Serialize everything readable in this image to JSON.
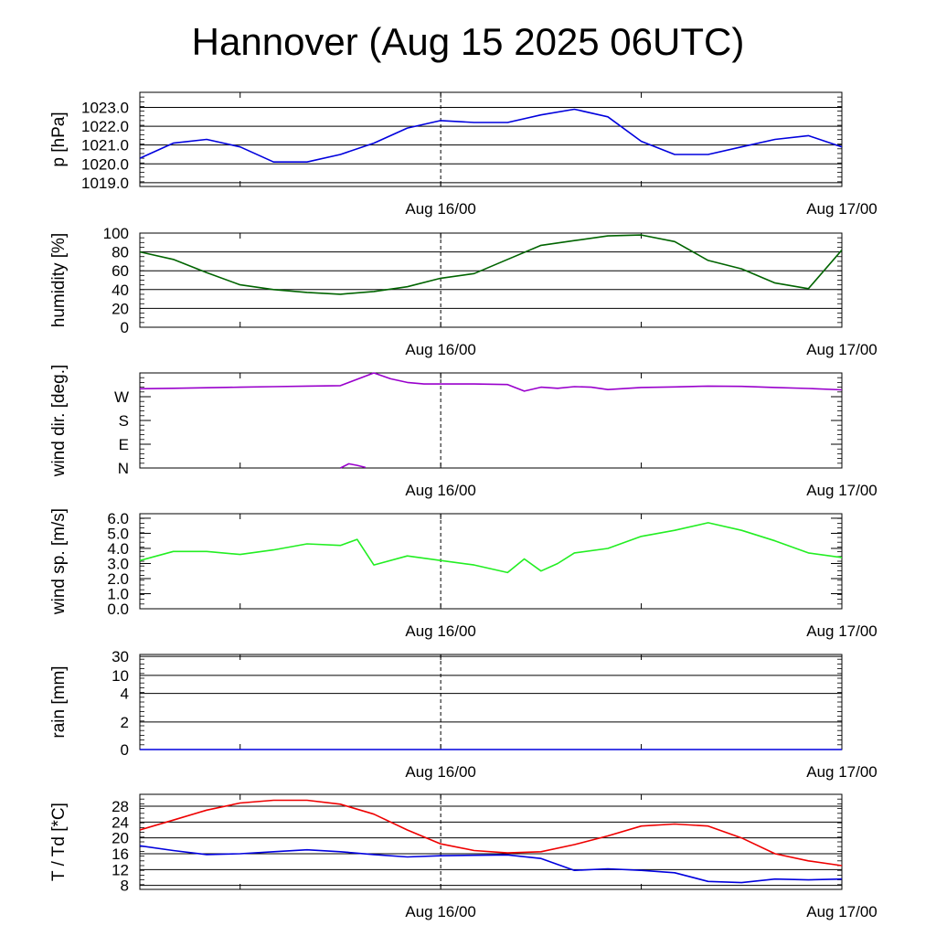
{
  "title": "Hannover (Aug 15 2025 06UTC)",
  "x_axis": {
    "start": "2025-08-15T06:00Z",
    "end": "2025-08-17T00:00Z",
    "tick_labels": [
      {
        "t": "2025-08-16T00:00Z",
        "label": "Aug 16/00"
      },
      {
        "t": "2025-08-17T00:00Z",
        "label": "Aug 17/00"
      }
    ],
    "minor_ticks": [
      "2025-08-15T12:00Z",
      "2025-08-16T00:00Z",
      "2025-08-16T12:00Z",
      "2025-08-17T00:00Z"
    ],
    "dashed_line_at": "2025-08-16T00:00Z"
  },
  "chart_data": [
    {
      "type": "line",
      "ylabel": "p [hPa]",
      "ylim": [
        1018.8,
        1023.8
      ],
      "yticks": [
        {
          "value": 1019.0,
          "label": "1019.0"
        },
        {
          "value": 1020.0,
          "label": "1020.0"
        },
        {
          "value": 1021.0,
          "label": "1021.0"
        },
        {
          "value": 1022.0,
          "label": "1022.0"
        },
        {
          "value": 1023.0,
          "label": "1023.0"
        }
      ],
      "grid": true,
      "series": [
        {
          "color": "#0000dd",
          "x": [
            "2025-08-15T06:00Z",
            "2025-08-15T08:00Z",
            "2025-08-15T10:00Z",
            "2025-08-15T12:00Z",
            "2025-08-15T14:00Z",
            "2025-08-15T16:00Z",
            "2025-08-15T18:00Z",
            "2025-08-15T20:00Z",
            "2025-08-15T22:00Z",
            "2025-08-16T00:00Z",
            "2025-08-16T02:00Z",
            "2025-08-16T04:00Z",
            "2025-08-16T06:00Z",
            "2025-08-16T08:00Z",
            "2025-08-16T10:00Z",
            "2025-08-16T12:00Z",
            "2025-08-16T14:00Z",
            "2025-08-16T16:00Z",
            "2025-08-16T18:00Z",
            "2025-08-16T20:00Z",
            "2025-08-16T22:00Z",
            "2025-08-17T00:00Z"
          ],
          "values": [
            1020.3,
            1021.1,
            1021.3,
            1020.9,
            1020.1,
            1020.1,
            1020.5,
            1021.1,
            1021.9,
            1022.3,
            1022.2,
            1022.2,
            1022.6,
            1022.9,
            1022.5,
            1021.2,
            1020.5,
            1020.5,
            1020.9,
            1021.3,
            1021.5,
            1020.9
          ]
        }
      ]
    },
    {
      "type": "line",
      "ylabel": "humidity [%]",
      "ylim": [
        0,
        100
      ],
      "yticks": [
        {
          "value": 0,
          "label": "0"
        },
        {
          "value": 20,
          "label": "20"
        },
        {
          "value": 40,
          "label": "40"
        },
        {
          "value": 60,
          "label": "60"
        },
        {
          "value": 80,
          "label": "80"
        },
        {
          "value": 100,
          "label": "100"
        }
      ],
      "grid": true,
      "series": [
        {
          "color": "#006400",
          "x": [
            "2025-08-15T06:00Z",
            "2025-08-15T08:00Z",
            "2025-08-15T10:00Z",
            "2025-08-15T12:00Z",
            "2025-08-15T14:00Z",
            "2025-08-15T16:00Z",
            "2025-08-15T18:00Z",
            "2025-08-15T20:00Z",
            "2025-08-15T22:00Z",
            "2025-08-16T00:00Z",
            "2025-08-16T02:00Z",
            "2025-08-16T04:00Z",
            "2025-08-16T06:00Z",
            "2025-08-16T08:00Z",
            "2025-08-16T10:00Z",
            "2025-08-16T12:00Z",
            "2025-08-16T14:00Z",
            "2025-08-16T16:00Z",
            "2025-08-16T18:00Z",
            "2025-08-16T20:00Z",
            "2025-08-16T22:00Z",
            "2025-08-17T00:00Z"
          ],
          "values": [
            80,
            72,
            58,
            45,
            40,
            37,
            35,
            38,
            43,
            52,
            57,
            72,
            87,
            92,
            97,
            98,
            91,
            71,
            62,
            47,
            41,
            82
          ]
        }
      ]
    },
    {
      "type": "line",
      "ylabel": "wind dir. [deg.]",
      "ylim": [
        0,
        360
      ],
      "yticks": [
        {
          "value": 0,
          "label": "N"
        },
        {
          "value": 90,
          "label": "E"
        },
        {
          "value": 180,
          "label": "S"
        },
        {
          "value": 270,
          "label": "W"
        }
      ],
      "grid": false,
      "series": [
        {
          "color": "#9900cc",
          "x": [
            "2025-08-15T06:00Z",
            "2025-08-15T08:00Z",
            "2025-08-15T10:00Z",
            "2025-08-15T12:00Z",
            "2025-08-15T14:00Z",
            "2025-08-15T16:00Z",
            "2025-08-15T18:00Z",
            "2025-08-15T20:00Z",
            "2025-08-15T21:00Z",
            "2025-08-15T22:00Z",
            "2025-08-15T23:00Z",
            "2025-08-16T00:00Z",
            "2025-08-16T02:00Z",
            "2025-08-16T04:00Z",
            "2025-08-16T05:00Z",
            "2025-08-16T06:00Z",
            "2025-08-16T07:00Z",
            "2025-08-16T08:00Z",
            "2025-08-16T09:00Z",
            "2025-08-16T10:00Z",
            "2025-08-16T12:00Z",
            "2025-08-16T14:00Z",
            "2025-08-16T16:00Z",
            "2025-08-16T18:00Z",
            "2025-08-16T20:00Z",
            "2025-08-16T22:00Z",
            "2025-08-17T00:00Z"
          ],
          "values": [
            300,
            302,
            304,
            306,
            308,
            310,
            312,
            360,
            338,
            324,
            318,
            318,
            318,
            316,
            291,
            306,
            302,
            308,
            306,
            297,
            305,
            307,
            310,
            309,
            305,
            301,
            296
          ]
        },
        {
          "color": "#9900cc",
          "x": [
            "2025-08-15T18:00Z",
            "2025-08-15T18:30Z",
            "2025-08-15T19:00Z",
            "2025-08-15T19:30Z"
          ],
          "values": [
            0,
            16,
            10,
            2
          ]
        }
      ]
    },
    {
      "type": "line",
      "ylabel": "wind sp. [m/s]",
      "ylim": [
        0,
        6.3
      ],
      "yticks": [
        {
          "value": 0.0,
          "label": "0.0"
        },
        {
          "value": 1.0,
          "label": "1.0"
        },
        {
          "value": 2.0,
          "label": "2.0"
        },
        {
          "value": 3.0,
          "label": "3.0"
        },
        {
          "value": 4.0,
          "label": "4.0"
        },
        {
          "value": 5.0,
          "label": "5.0"
        },
        {
          "value": 6.0,
          "label": "6.0"
        }
      ],
      "grid": false,
      "series": [
        {
          "color": "#22ee22",
          "x": [
            "2025-08-15T06:00Z",
            "2025-08-15T08:00Z",
            "2025-08-15T10:00Z",
            "2025-08-15T12:00Z",
            "2025-08-15T14:00Z",
            "2025-08-15T16:00Z",
            "2025-08-15T18:00Z",
            "2025-08-15T19:00Z",
            "2025-08-15T20:00Z",
            "2025-08-15T22:00Z",
            "2025-08-16T00:00Z",
            "2025-08-16T02:00Z",
            "2025-08-16T04:00Z",
            "2025-08-16T05:00Z",
            "2025-08-16T06:00Z",
            "2025-08-16T07:00Z",
            "2025-08-16T08:00Z",
            "2025-08-16T10:00Z",
            "2025-08-16T12:00Z",
            "2025-08-16T14:00Z",
            "2025-08-16T16:00Z",
            "2025-08-16T18:00Z",
            "2025-08-16T20:00Z",
            "2025-08-16T22:00Z",
            "2025-08-17T00:00Z"
          ],
          "values": [
            3.2,
            3.8,
            3.8,
            3.6,
            3.9,
            4.3,
            4.2,
            4.6,
            2.9,
            3.5,
            3.2,
            2.9,
            2.4,
            3.3,
            2.5,
            3.0,
            3.7,
            4.0,
            4.8,
            5.2,
            5.7,
            5.2,
            4.5,
            3.7,
            3.4
          ]
        }
      ]
    },
    {
      "type": "line",
      "ylabel": "rain [mm]",
      "ylim": [
        0,
        34
      ],
      "yticks": [
        {
          "value": 0,
          "label": "0"
        },
        {
          "value": 2,
          "label": "2"
        },
        {
          "value": 4,
          "label": "4"
        },
        {
          "value": 10,
          "label": "10"
        },
        {
          "value": 30,
          "label": "30"
        }
      ],
      "grid": true,
      "series": [
        {
          "color": "#0000dd",
          "x": [
            "2025-08-15T06:00Z",
            "2025-08-17T00:00Z"
          ],
          "values": [
            0,
            0
          ]
        }
      ]
    },
    {
      "type": "line",
      "ylabel": "T / Td [*C]",
      "ylim": [
        7,
        31
      ],
      "yticks": [
        {
          "value": 8,
          "label": "8"
        },
        {
          "value": 12,
          "label": "12"
        },
        {
          "value": 16,
          "label": "16"
        },
        {
          "value": 20,
          "label": "20"
        },
        {
          "value": 24,
          "label": "24"
        },
        {
          "value": 28,
          "label": "28"
        }
      ],
      "grid": true,
      "series": [
        {
          "color": "#ee0000",
          "x": [
            "2025-08-15T06:00Z",
            "2025-08-15T08:00Z",
            "2025-08-15T10:00Z",
            "2025-08-15T12:00Z",
            "2025-08-15T14:00Z",
            "2025-08-15T16:00Z",
            "2025-08-15T18:00Z",
            "2025-08-15T20:00Z",
            "2025-08-15T22:00Z",
            "2025-08-16T00:00Z",
            "2025-08-16T02:00Z",
            "2025-08-16T04:00Z",
            "2025-08-16T06:00Z",
            "2025-08-16T08:00Z",
            "2025-08-16T10:00Z",
            "2025-08-16T12:00Z",
            "2025-08-16T14:00Z",
            "2025-08-16T16:00Z",
            "2025-08-16T18:00Z",
            "2025-08-16T20:00Z",
            "2025-08-16T22:00Z",
            "2025-08-17T00:00Z"
          ],
          "values": [
            22,
            24.5,
            27,
            28.8,
            29.5,
            29.5,
            28.5,
            26,
            22,
            18.5,
            16.8,
            16.2,
            16.5,
            18.3,
            20.5,
            23,
            23.5,
            23,
            20,
            16,
            14.2,
            13
          ]
        },
        {
          "color": "#0000dd",
          "x": [
            "2025-08-15T06:00Z",
            "2025-08-15T08:00Z",
            "2025-08-15T10:00Z",
            "2025-08-15T12:00Z",
            "2025-08-15T14:00Z",
            "2025-08-15T16:00Z",
            "2025-08-15T18:00Z",
            "2025-08-15T20:00Z",
            "2025-08-15T22:00Z",
            "2025-08-16T00:00Z",
            "2025-08-16T02:00Z",
            "2025-08-16T04:00Z",
            "2025-08-16T06:00Z",
            "2025-08-16T08:00Z",
            "2025-08-16T10:00Z",
            "2025-08-16T12:00Z",
            "2025-08-16T14:00Z",
            "2025-08-16T16:00Z",
            "2025-08-16T18:00Z",
            "2025-08-16T20:00Z",
            "2025-08-16T22:00Z",
            "2025-08-17T00:00Z"
          ],
          "values": [
            18,
            16.8,
            15.8,
            16,
            16.5,
            17,
            16.5,
            15.8,
            15.2,
            15.5,
            15.6,
            15.7,
            14.8,
            11.8,
            12.2,
            11.8,
            11.2,
            9,
            8.7,
            9.6,
            9.4,
            9.6
          ]
        }
      ]
    }
  ]
}
